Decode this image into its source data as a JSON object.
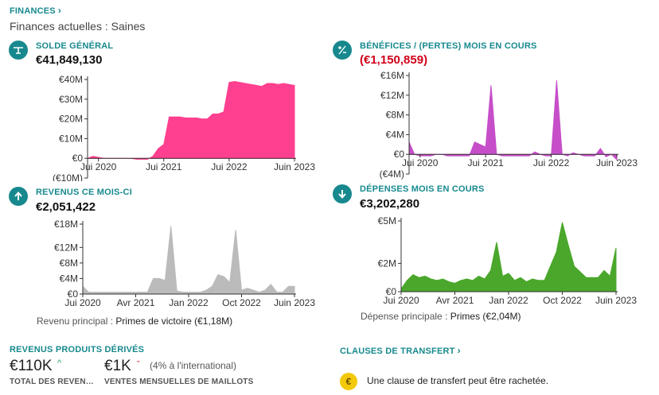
{
  "header": {
    "title": "FINANCES",
    "status_label": "Finances actuelles",
    "status_value": "Saines"
  },
  "colors": {
    "accent": "#17898e",
    "negative": "#d0021b",
    "pink": "#ff3f8f",
    "magenta": "#c64fc9",
    "grey": "#bbbbbb",
    "green": "#4aa72b",
    "coin": "#f3c90a"
  },
  "kpis": {
    "balance": {
      "icon": "balance-scale-icon",
      "label": "SOLDE GÉNÉRAL",
      "value": "€41,849,130"
    },
    "profit": {
      "icon": "plus-minus-icon",
      "label": "BÉNÉFICES / (PERTES) MOIS EN COURS",
      "value": "(€1,150,859)"
    },
    "revenue": {
      "icon": "arrow-up-icon",
      "label": "REVENUS CE MOIS-CI",
      "value": "€2,051,422"
    },
    "expenses": {
      "icon": "arrow-down-icon",
      "label": "DÉPENSES MOIS EN COURS",
      "value": "€3,202,280"
    }
  },
  "revenue_meta": {
    "label": "Revenu principal :",
    "value": "Primes de victoire (€1,18M)"
  },
  "expense_meta": {
    "label": "Dépense principale :",
    "value": "Primes (€2,04M)"
  },
  "merch": {
    "title": "REVENUS PRODUITS DÉRIVÉS",
    "total_value": "€110K",
    "total_label": "TOTAL DES REVEN…",
    "shirts_value": "€1K",
    "shirts_note": "(4% à l'international)",
    "shirts_label": "VENTES MENSUELLES DE MAILLOTS"
  },
  "transfer": {
    "title": "CLAUSES DE TRANSFERT",
    "coin": "€",
    "text": "Une clause de transfert peut être rachetée."
  },
  "chart_data": [
    {
      "type": "area",
      "ylim": [
        -10,
        40
      ],
      "yticks": [
        "€40M",
        "€30M",
        "€20M",
        "€10M",
        "€0",
        "(€10M)"
      ],
      "ytick_values": [
        40,
        30,
        20,
        10,
        0,
        -10
      ],
      "xticks": [
        "Jui 2020",
        "Jui 2021",
        "Jui 2022",
        "Juin 2023"
      ],
      "xtick_index": [
        2,
        14,
        26,
        38
      ],
      "values": [
        0,
        1,
        0.5,
        0,
        0,
        0,
        0,
        0,
        0,
        -0.5,
        -0.5,
        -0.5,
        1,
        5,
        7,
        21,
        21,
        21,
        20.5,
        20.5,
        20.5,
        20,
        20,
        22.5,
        22.5,
        23.5,
        38.5,
        39,
        38.5,
        38,
        37.5,
        37,
        36.5,
        38,
        38,
        37.5,
        38,
        37.5,
        37
      ]
    },
    {
      "type": "area",
      "ylim": [
        -4,
        16
      ],
      "yticks": [
        "€16M",
        "€12M",
        "€8M",
        "€4M",
        "€0",
        "(€4M)"
      ],
      "ytick_values": [
        16,
        12,
        8,
        4,
        0,
        -4
      ],
      "xticks": [
        "Jui 2020",
        "Jui 2021",
        "Jui 2022",
        "Juin 2023"
      ],
      "xtick_index": [
        2,
        14,
        26,
        38
      ],
      "values": [
        2.5,
        0,
        -0.3,
        -0.3,
        -0.3,
        0,
        0,
        -0.3,
        -0.3,
        -0.3,
        -0.3,
        -0.3,
        2.5,
        2,
        1.5,
        14,
        0,
        -0.3,
        -0.3,
        -0.3,
        -0.3,
        -0.3,
        -0.3,
        0.5,
        0,
        -0.3,
        -0.3,
        15,
        0,
        -0.3,
        0.3,
        0,
        -0.3,
        -0.3,
        -0.3,
        1.2,
        -0.5,
        0,
        -1.1
      ]
    },
    {
      "type": "area",
      "ylim": [
        0,
        18
      ],
      "yticks": [
        "€18M",
        "€12M",
        "€8M",
        "€4M",
        "€0"
      ],
      "ytick_values": [
        18,
        12,
        8,
        4,
        0
      ],
      "xticks": [
        "Jui 2020",
        "Avr 2021",
        "Jan 2022",
        "Oct 2022",
        "Juin 2023"
      ],
      "xtick_index": [
        0,
        9,
        18,
        27,
        36
      ],
      "values": [
        2,
        0.5,
        0.5,
        0.5,
        0.5,
        0.5,
        0.5,
        0.5,
        0.5,
        0.5,
        0.5,
        0.5,
        4,
        4,
        3.5,
        17.5,
        0.8,
        0.5,
        0.5,
        0.5,
        0.5,
        1,
        2,
        5,
        4.5,
        3,
        16.5,
        1,
        1.5,
        1,
        0.5,
        1,
        2.5,
        0.5,
        0.5,
        2,
        2
      ]
    },
    {
      "type": "area",
      "ylim": [
        0,
        5
      ],
      "yticks": [
        "€5M",
        "€2M",
        "€0"
      ],
      "ytick_values": [
        5,
        2,
        0
      ],
      "xticks": [
        "Jui 2020",
        "Avr 2021",
        "Jan 2022",
        "Oct 2022",
        "Juin 2023"
      ],
      "xtick_index": [
        0,
        9,
        18,
        27,
        36
      ],
      "values": [
        0.2,
        0.8,
        1.2,
        1.0,
        1.1,
        0.9,
        0.8,
        0.9,
        0.7,
        0.6,
        0.8,
        0.9,
        0.8,
        1.1,
        0.9,
        1.5,
        3.5,
        1.1,
        1.3,
        0.8,
        1.0,
        0.7,
        0.9,
        0.8,
        0.8,
        1.8,
        2.8,
        4.9,
        3.3,
        1.8,
        1.4,
        1.0,
        1.0,
        1.0,
        1.5,
        1.1,
        3.1
      ]
    }
  ]
}
